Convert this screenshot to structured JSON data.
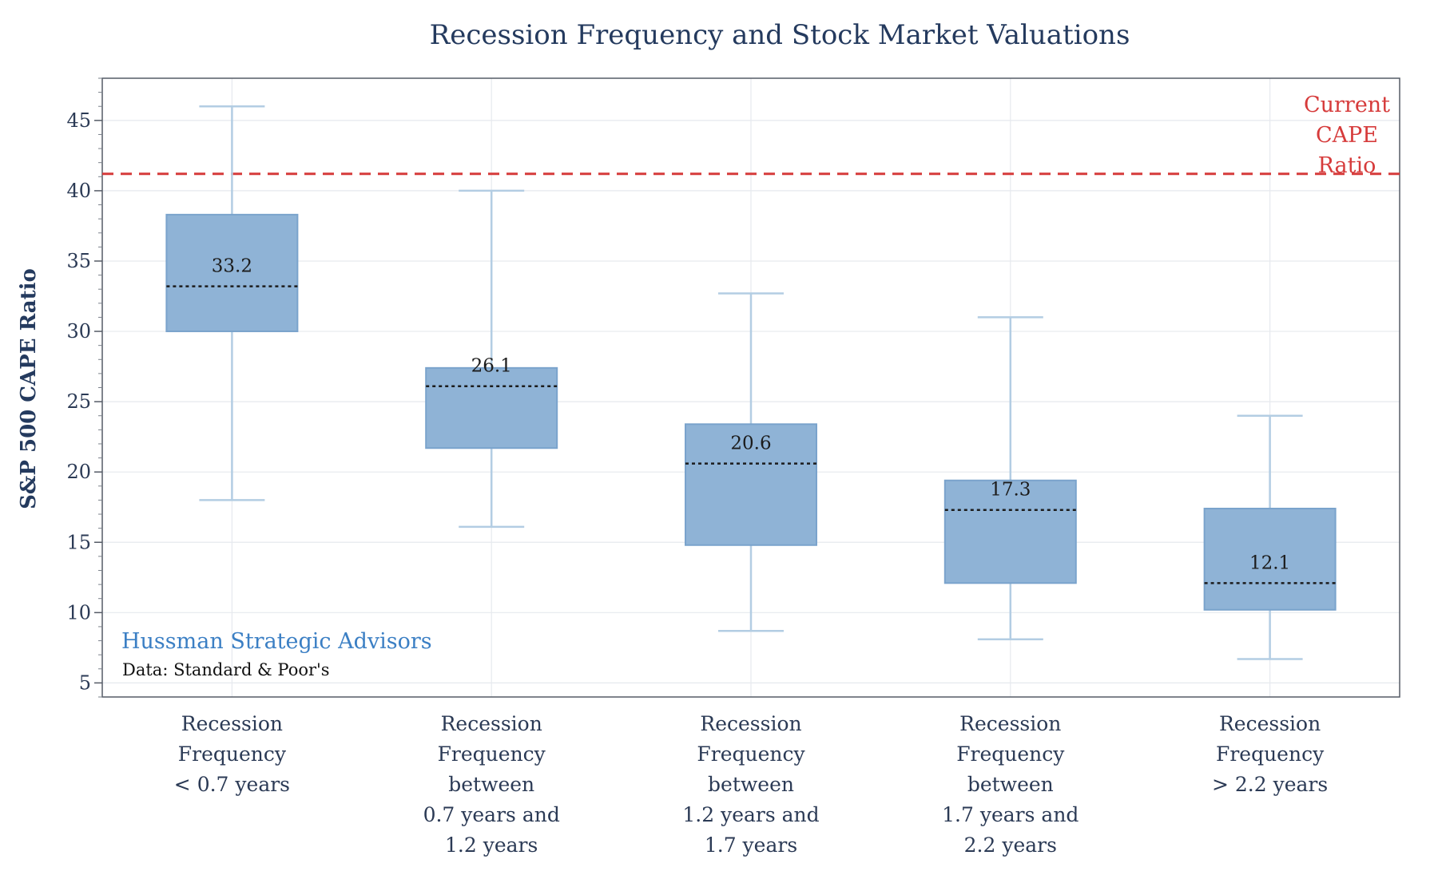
{
  "chart_data": {
    "type": "box",
    "title": "Recession Frequency and Stock Market Valuations",
    "ylabel": "S&P 500 CAPE Ratio",
    "ylim": [
      4,
      48
    ],
    "yticks": [
      5,
      10,
      15,
      20,
      25,
      30,
      35,
      40,
      45
    ],
    "grid": true,
    "categories": [
      [
        "Recession",
        "Frequency",
        "< 0.7 years"
      ],
      [
        "Recession",
        "Frequency",
        "between",
        "0.7 years and",
        "1.2 years"
      ],
      [
        "Recession",
        "Frequency",
        "between",
        "1.2 years and",
        "1.7 years"
      ],
      [
        "Recession",
        "Frequency",
        "between",
        "1.7 years and",
        "2.2 years"
      ],
      [
        "Recession",
        "Frequency",
        "> 2.2 years"
      ]
    ],
    "boxes": [
      {
        "whisker_low": 18.0,
        "q1": 30.0,
        "median": 33.2,
        "q3": 38.3,
        "whisker_high": 46.0,
        "label": "33.2"
      },
      {
        "whisker_low": 16.1,
        "q1": 21.7,
        "median": 26.1,
        "q3": 27.4,
        "whisker_high": 40.0,
        "label": "26.1"
      },
      {
        "whisker_low": 8.7,
        "q1": 14.8,
        "median": 20.6,
        "q3": 23.4,
        "whisker_high": 32.7,
        "label": "20.6"
      },
      {
        "whisker_low": 8.1,
        "q1": 12.1,
        "median": 17.3,
        "q3": 19.4,
        "whisker_high": 31.0,
        "label": "17.3"
      },
      {
        "whisker_low": 6.7,
        "q1": 10.2,
        "median": 12.1,
        "q3": 17.4,
        "whisker_high": 24.0,
        "label": "12.1"
      }
    ],
    "reference_line": {
      "value": 41.2,
      "label": [
        "Current",
        "CAPE",
        "Ratio"
      ],
      "color": "#d63b3b",
      "style": "dashed"
    },
    "source": {
      "main": "Hussman Strategic Advisors",
      "sub": "Data: Standard & Poor's"
    },
    "colors": {
      "box_fill": "#8fb3d6",
      "box_stroke": "#7aa3cc",
      "whisker": "#b3cde3",
      "median": "#1c1c1c",
      "grid": "#e6e9ee",
      "title": "#243a5e"
    }
  }
}
